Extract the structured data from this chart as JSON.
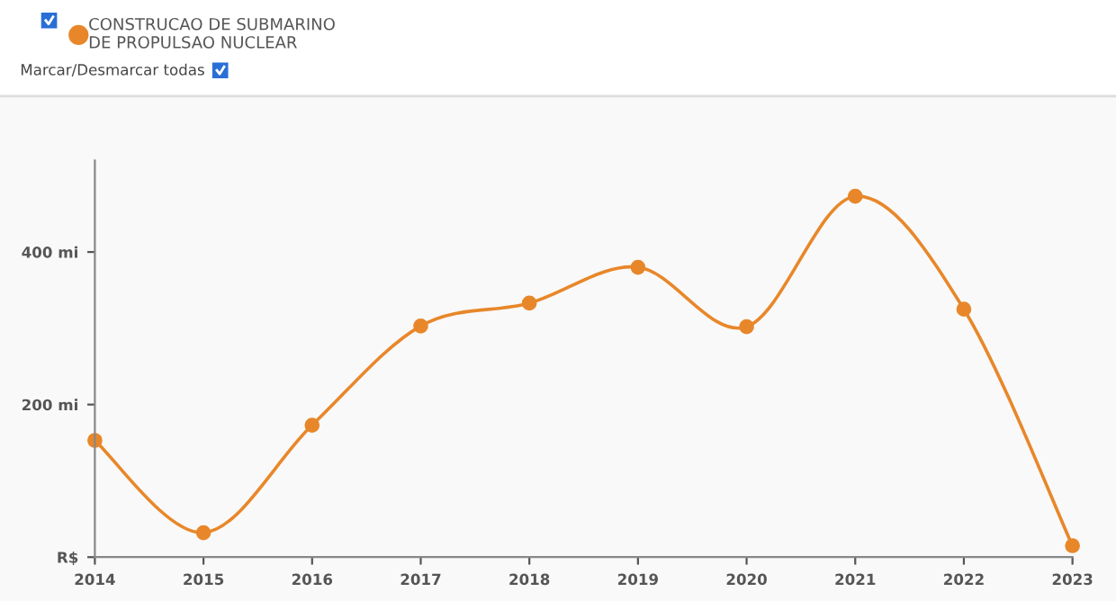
{
  "chart_data": {
    "type": "line",
    "x": [
      2014,
      2015,
      2016,
      2017,
      2018,
      2019,
      2020,
      2021,
      2022,
      2023
    ],
    "series": [
      {
        "name": "CONSTRUCAO DE SUBMARINO\nDE PROPULSAO NUCLEAR",
        "color": "#e8872a",
        "values": [
          153,
          32,
          173,
          303,
          333,
          380,
          302,
          473,
          325,
          15
        ]
      }
    ],
    "xlim": [
      2014,
      2023
    ],
    "xticks": [
      2014,
      2015,
      2016,
      2017,
      2018,
      2019,
      2020,
      2021,
      2022,
      2023
    ],
    "ylim": [
      0,
      520
    ],
    "yticks": [
      {
        "value": 0,
        "label": "R$"
      },
      {
        "value": 200,
        "label": "200 mi"
      },
      {
        "value": 400,
        "label": "400 mi"
      }
    ],
    "annotations": [
      "Marcar/Desmarcar todas"
    ],
    "legend": "top left",
    "marker": "circle",
    "line_style": "solid",
    "grid": false
  }
}
